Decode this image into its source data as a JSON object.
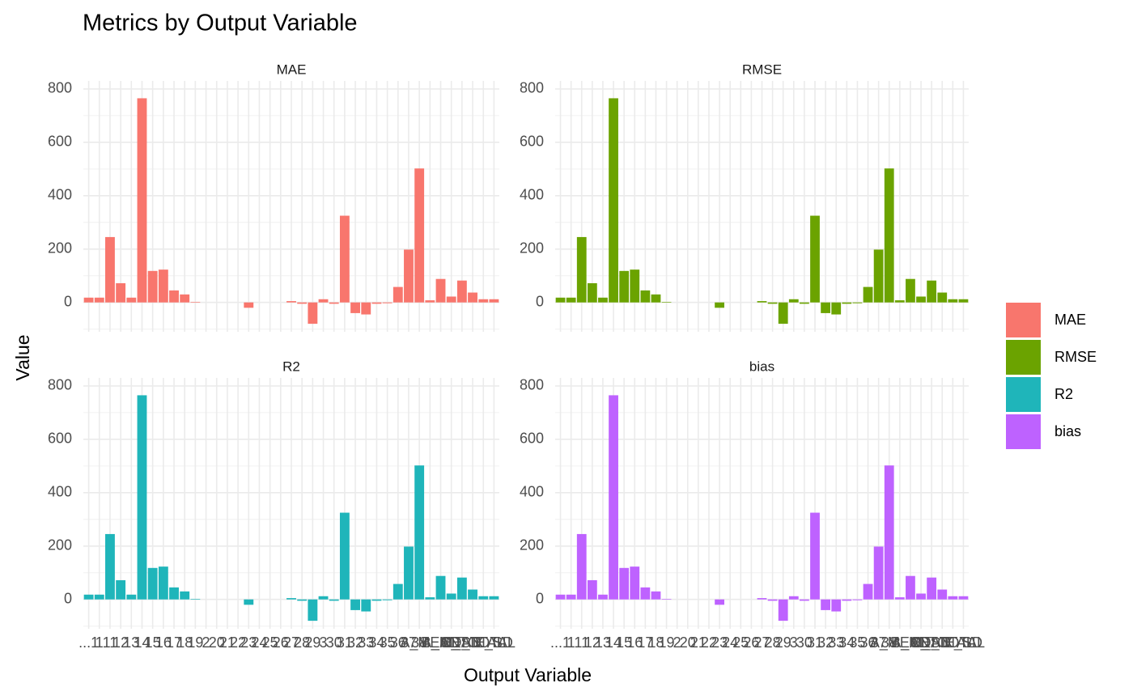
{
  "chart_data": {
    "type": "bar",
    "title": "Metrics by Output Variable",
    "x_label": "Output Variable",
    "y_label": "Value",
    "categories": [
      "...1",
      "1",
      "11",
      "12",
      "13",
      "14",
      "15",
      "16",
      "17",
      "18",
      "19",
      "2",
      "20",
      "21",
      "22",
      "23",
      "24",
      "25",
      "26",
      "27",
      "28",
      "29",
      "3",
      "30",
      "31",
      "32",
      "33",
      "34",
      "35",
      "36",
      "37",
      "38",
      "A_MEAN",
      "A_SD",
      "B_MEAN",
      "B_SD",
      "C_TOTAL",
      "D_TOTAL",
      "E_SD"
    ],
    "series": [
      {
        "name": "MAE",
        "color": "#F8766D",
        "values": [
          18,
          18,
          245,
          72,
          18,
          765,
          118,
          123,
          45,
          30,
          2,
          0,
          0,
          0,
          0,
          -20,
          0,
          0,
          0,
          5,
          -5,
          -80,
          12,
          -5,
          325,
          -40,
          -45,
          -5,
          -3,
          58,
          198,
          502,
          8,
          88,
          22,
          82,
          37,
          12,
          12
        ]
      },
      {
        "name": "RMSE",
        "color": "#6BA300",
        "values": [
          18,
          18,
          245,
          72,
          18,
          765,
          118,
          123,
          45,
          30,
          2,
          0,
          0,
          0,
          0,
          -20,
          0,
          0,
          0,
          5,
          -5,
          -80,
          12,
          -5,
          325,
          -40,
          -45,
          -5,
          -3,
          58,
          198,
          502,
          8,
          88,
          22,
          82,
          37,
          12,
          12
        ]
      },
      {
        "name": "R2",
        "color": "#1FB5BA",
        "values": [
          18,
          18,
          245,
          72,
          18,
          765,
          118,
          123,
          45,
          30,
          2,
          0,
          0,
          0,
          0,
          -20,
          0,
          0,
          0,
          5,
          -5,
          -80,
          12,
          -5,
          325,
          -40,
          -45,
          -5,
          -3,
          58,
          198,
          502,
          8,
          88,
          22,
          82,
          37,
          12,
          12
        ]
      },
      {
        "name": "bias",
        "color": "#BE62FF",
        "values": [
          18,
          18,
          245,
          72,
          18,
          765,
          118,
          123,
          45,
          30,
          2,
          0,
          0,
          0,
          0,
          -20,
          0,
          0,
          0,
          5,
          -5,
          -80,
          12,
          -5,
          325,
          -40,
          -45,
          -5,
          -3,
          58,
          198,
          502,
          8,
          88,
          22,
          82,
          37,
          12,
          12
        ]
      }
    ],
    "ylim": [
      -110,
      830
    ],
    "yticks": [
      0,
      200,
      400,
      600,
      800
    ],
    "grid": true,
    "legend": "right"
  }
}
